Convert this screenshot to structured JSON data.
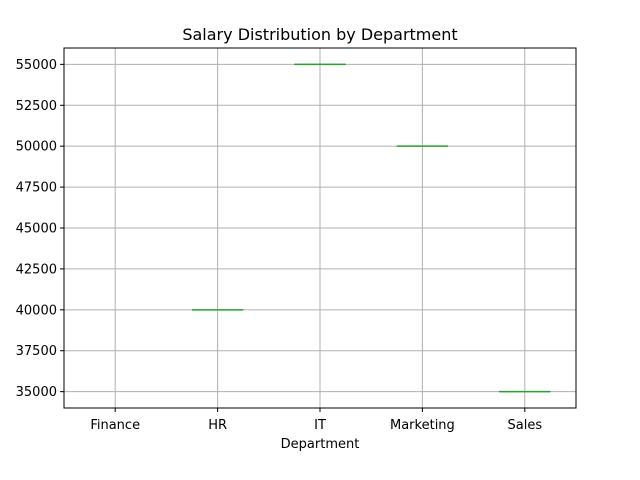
{
  "chart_data": {
    "type": "box",
    "title": "Salary Distribution by Department",
    "xlabel": "Department",
    "ylabel": "",
    "categories": [
      "Finance",
      "HR",
      "IT",
      "Marketing",
      "Sales"
    ],
    "values": [
      null,
      40000,
      55000,
      50000,
      35000
    ],
    "ylim": [
      34000,
      56000
    ],
    "yticks": [
      35000,
      37500,
      40000,
      42500,
      45000,
      47500,
      50000,
      52500,
      55000
    ],
    "grid": true,
    "colors": {
      "median": "#2ca02c",
      "box": "#1f77b4",
      "grid": "#b0b0b0",
      "axis": "#000000"
    }
  }
}
